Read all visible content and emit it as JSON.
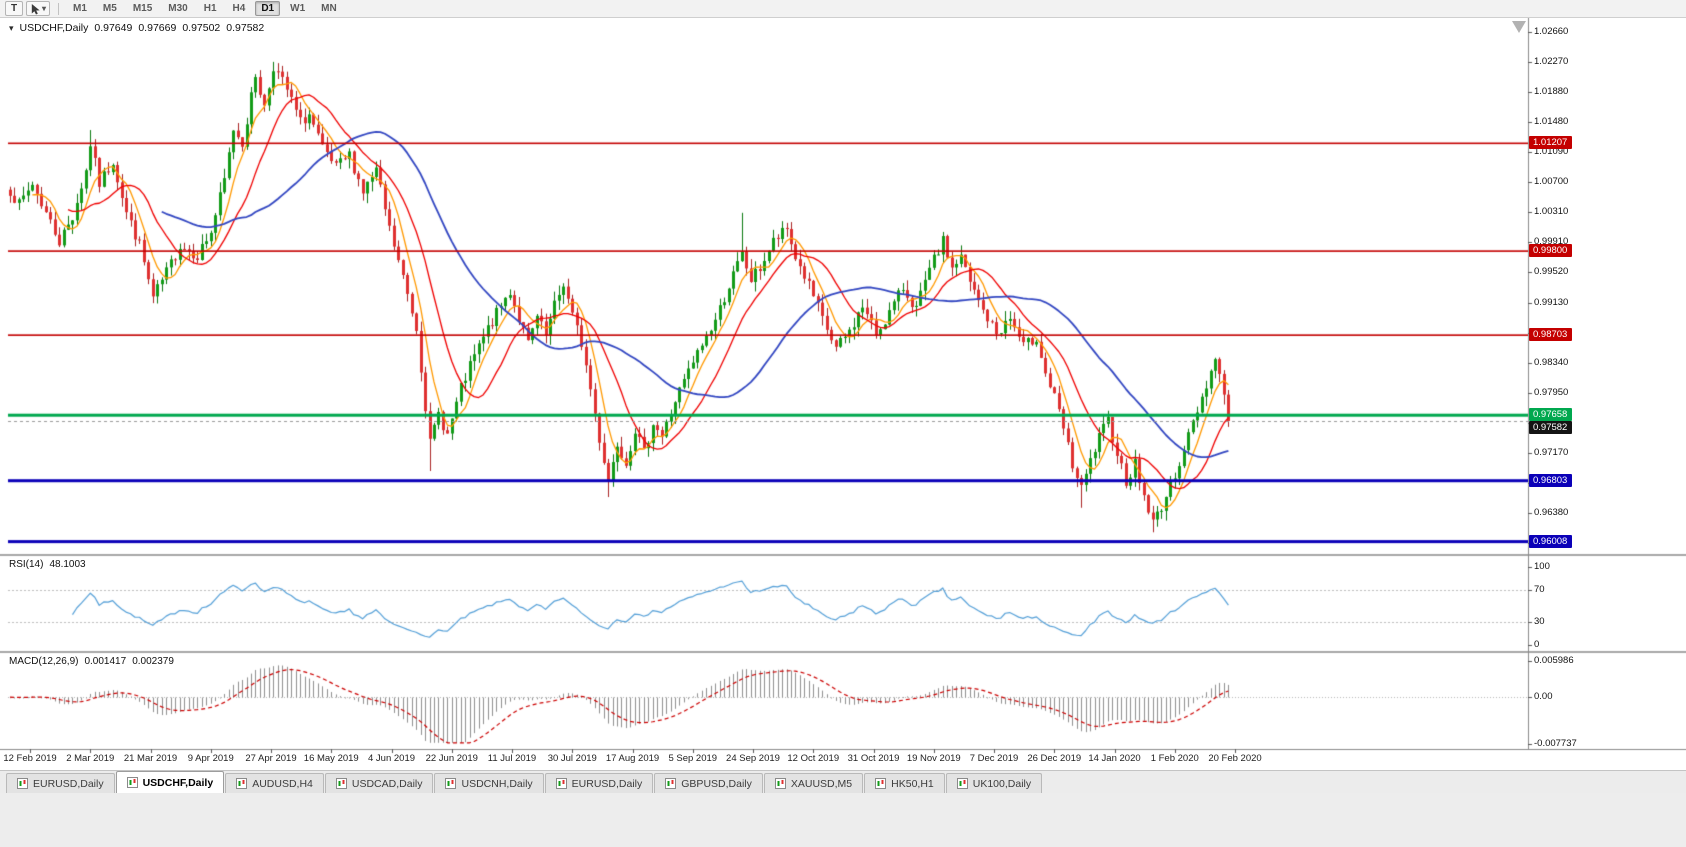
{
  "toolbar": {
    "text_tool_label": "T",
    "timeframes": [
      "M1",
      "M5",
      "M15",
      "M30",
      "H1",
      "H4",
      "D1",
      "W1",
      "MN"
    ],
    "active_timeframe": "D1"
  },
  "chart_header": {
    "symbol_period": "USDCHF,Daily",
    "open": "0.97649",
    "high": "0.97669",
    "low": "0.97502",
    "close": "0.97582"
  },
  "price_scale": {
    "labels": [
      "1.02660",
      "1.02270",
      "1.01880",
      "1.01480",
      "1.01090",
      "1.00700",
      "1.00310",
      "0.99910",
      "0.99520",
      "0.99130",
      "0.98730",
      "0.98340",
      "0.97950",
      "0.97560",
      "0.97170",
      "0.96770",
      "0.96380",
      "0.95990"
    ],
    "max": 1.0266,
    "min": 0.9599
  },
  "time_scale": [
    "12 Feb 2019",
    "2 Mar 2019",
    "21 Mar 2019",
    "9 Apr 2019",
    "27 Apr 2019",
    "16 May 2019",
    "4 Jun 2019",
    "22 Jun 2019",
    "11 Jul 2019",
    "30 Jul 2019",
    "17 Aug 2019",
    "5 Sep 2019",
    "24 Sep 2019",
    "12 Oct 2019",
    "31 Oct 2019",
    "19 Nov 2019",
    "7 Dec 2019",
    "26 Dec 2019",
    "14 Jan 2020",
    "1 Feb 2020",
    "20 Feb 2020"
  ],
  "levels": [
    {
      "label": "1.01207",
      "value": 1.01207,
      "color": "#c40000",
      "thickness": 1.6
    },
    {
      "label": "0.99800",
      "value": 0.998,
      "color": "#c40000",
      "thickness": 1.6
    },
    {
      "label": "0.98703",
      "value": 0.98703,
      "color": "#c40000",
      "thickness": 1.6
    },
    {
      "label": "0.97658",
      "value": 0.97658,
      "color": "#00a84f",
      "thickness": 3
    },
    {
      "label": "0.96803",
      "value": 0.96803,
      "color": "#0b00b8",
      "thickness": 3
    },
    {
      "label": "0.96008",
      "value": 0.96008,
      "color": "#0b00b8",
      "thickness": 3
    }
  ],
  "current_price": {
    "label": "0.97582",
    "value": 0.97582,
    "flag_color": "#141414"
  },
  "indicators": {
    "rsi": {
      "name": "RSI(14)",
      "value": "48.1003",
      "period": 14,
      "line_color": "#55a0d8",
      "guide_levels": [
        70,
        30
      ],
      "scale": [
        {
          "label": "100",
          "v": 100
        },
        {
          "label": "70",
          "v": 70
        },
        {
          "label": "30",
          "v": 30
        },
        {
          "label": "0",
          "v": 0
        }
      ]
    },
    "macd": {
      "name": "MACD(12,26,9)",
      "value_main": "0.001417",
      "value_signal": "0.002379",
      "fast": 12,
      "slow": 26,
      "signal": 9,
      "hist_color": "#8f8f8f",
      "signal_color": "#cc0000",
      "scale": [
        {
          "label": "0.005986",
          "v": 0.005986
        },
        {
          "label": "0.00",
          "v": 0
        },
        {
          "label": "-0.007737",
          "v": -0.007737
        }
      ]
    }
  },
  "tabs": [
    {
      "label": "EURUSD,Daily",
      "active": false
    },
    {
      "label": "USDCHF,Daily",
      "active": true
    },
    {
      "label": "AUDUSD,H4",
      "active": false
    },
    {
      "label": "USDCAD,Daily",
      "active": false
    },
    {
      "label": "USDCNH,Daily",
      "active": false
    },
    {
      "label": "EURUSD,Daily",
      "active": false
    },
    {
      "label": "GBPUSD,Daily",
      "active": false
    },
    {
      "label": "XAUUSD,M5",
      "active": false
    },
    {
      "label": "HK50,H1",
      "active": false
    },
    {
      "label": "UK100,Daily",
      "active": false
    }
  ],
  "chart_data": {
    "type": "candlestick",
    "title": "USDCHF Daily with SR levels, 3 moving averages, RSI(14), MACD(12,26,9)",
    "symbol": "USDCHF",
    "period": "Daily",
    "x_range": [
      "12 Feb 2019",
      "20 Feb 2020"
    ],
    "y_range": [
      0.9599,
      1.0266
    ],
    "candle_count": 274,
    "up_color": "#129b18",
    "up_wick_color": "#0a7a10",
    "down_color": "#df3030",
    "down_wick_color": "#aa2424",
    "anchors": [
      [
        0,
        1.006
      ],
      [
        2,
        1.004
      ],
      [
        5,
        1.0068
      ],
      [
        8,
        1.003
      ],
      [
        11,
        0.9993
      ],
      [
        14,
        1.0025
      ],
      [
        17,
        1.0085
      ],
      [
        18,
        1.012
      ],
      [
        20,
        1.0068
      ],
      [
        23,
        1.0098
      ],
      [
        26,
        1.003
      ],
      [
        29,
        0.9988
      ],
      [
        32,
        0.9918
      ],
      [
        35,
        0.9952
      ],
      [
        38,
        0.9988
      ],
      [
        42,
        0.9975
      ],
      [
        45,
        1.0005
      ],
      [
        48,
        1.0072
      ],
      [
        50,
        1.014
      ],
      [
        52,
        1.0122
      ],
      [
        55,
        1.021
      ],
      [
        57,
        1.0168
      ],
      [
        59,
        1.0222
      ],
      [
        62,
        1.019
      ],
      [
        65,
        1.0148
      ],
      [
        67,
        1.0158
      ],
      [
        70,
        1.0112
      ],
      [
        73,
        1.0088
      ],
      [
        76,
        1.0105
      ],
      [
        79,
        1.0058
      ],
      [
        82,
        1.0085
      ],
      [
        85,
        1.0008
      ],
      [
        88,
        0.9945
      ],
      [
        91,
        0.988
      ],
      [
        94,
        0.9728
      ],
      [
        96,
        0.9768
      ],
      [
        98,
        0.974
      ],
      [
        101,
        0.98
      ],
      [
        104,
        0.9843
      ],
      [
        107,
        0.9878
      ],
      [
        110,
        0.9908
      ],
      [
        112,
        0.9928
      ],
      [
        114,
        0.9892
      ],
      [
        116,
        0.9858
      ],
      [
        118,
        0.9893
      ],
      [
        120,
        0.9868
      ],
      [
        122,
        0.9908
      ],
      [
        124,
        0.9938
      ],
      [
        126,
        0.9895
      ],
      [
        128,
        0.986
      ],
      [
        130,
        0.98
      ],
      [
        132,
        0.9735
      ],
      [
        134,
        0.968
      ],
      [
        136,
        0.973
      ],
      [
        138,
        0.9705
      ],
      [
        140,
        0.9748
      ],
      [
        142,
        0.9715
      ],
      [
        144,
        0.9758
      ],
      [
        146,
        0.9738
      ],
      [
        149,
        0.9785
      ],
      [
        152,
        0.9822
      ],
      [
        155,
        0.9858
      ],
      [
        158,
        0.989
      ],
      [
        161,
        0.9935
      ],
      [
        164,
        0.9975
      ],
      [
        166,
        0.9942
      ],
      [
        168,
        0.9958
      ],
      [
        171,
        0.9992
      ],
      [
        174,
        1.0008
      ],
      [
        176,
        0.9972
      ],
      [
        179,
        0.9935
      ],
      [
        182,
        0.989
      ],
      [
        185,
        0.9852
      ],
      [
        188,
        0.9875
      ],
      [
        191,
        0.9908
      ],
      [
        194,
        0.9872
      ],
      [
        197,
        0.99
      ],
      [
        200,
        0.9932
      ],
      [
        203,
        0.9905
      ],
      [
        205,
        0.9938
      ],
      [
        207,
        0.9968
      ],
      [
        209,
        0.9992
      ],
      [
        211,
        0.9958
      ],
      [
        213,
        0.9972
      ],
      [
        215,
        0.9938
      ],
      [
        218,
        0.9902
      ],
      [
        221,
        0.9872
      ],
      [
        224,
        0.9892
      ],
      [
        227,
        0.9855
      ],
      [
        230,
        0.9868
      ],
      [
        232,
        0.982
      ],
      [
        234,
        0.9788
      ],
      [
        236,
        0.9748
      ],
      [
        238,
        0.97
      ],
      [
        240,
        0.9668
      ],
      [
        242,
        0.9705
      ],
      [
        244,
        0.9736
      ],
      [
        246,
        0.9758
      ],
      [
        248,
        0.9718
      ],
      [
        250,
        0.968
      ],
      [
        252,
        0.9702
      ],
      [
        254,
        0.966
      ],
      [
        256,
        0.9625
      ],
      [
        258,
        0.9648
      ],
      [
        260,
        0.9672
      ],
      [
        261,
        0.969
      ],
      [
        263,
        0.9722
      ],
      [
        265,
        0.9756
      ],
      [
        267,
        0.979
      ],
      [
        269,
        0.9824
      ],
      [
        270,
        0.984
      ],
      [
        272,
        0.9798
      ],
      [
        273,
        0.97582
      ]
    ],
    "spikes_high": [
      [
        18,
        1.0138
      ],
      [
        59,
        1.0227
      ],
      [
        164,
        1.003
      ],
      [
        209,
        1.0005
      ]
    ],
    "spikes_low": [
      [
        94,
        0.9693
      ],
      [
        134,
        0.9659
      ],
      [
        240,
        0.9645
      ],
      [
        256,
        0.9613
      ]
    ],
    "moving_averages": [
      {
        "period": 6,
        "color": "#ff9900",
        "width": 1.3
      },
      {
        "period": 14,
        "color": "#f00000",
        "width": 1.3
      },
      {
        "period": 35,
        "color": "#3347c2",
        "width": 1.8
      }
    ]
  }
}
